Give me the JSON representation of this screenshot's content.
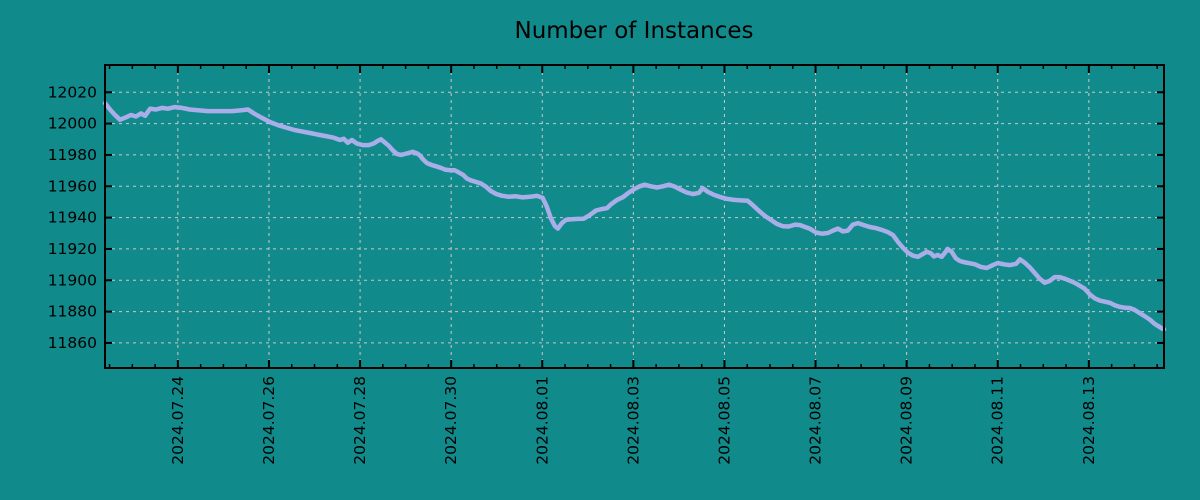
{
  "chart_data": {
    "type": "line",
    "title": "Number of Instances",
    "x_axis": {
      "kind": "time",
      "note": "x expressed in days since 2024.07.22 00:00, derived from tick labels",
      "domain": [
        0.4,
        23.65
      ],
      "major_ticks": [
        {
          "d": 2,
          "label": "2024.07.24"
        },
        {
          "d": 4,
          "label": "2024.07.26"
        },
        {
          "d": 6,
          "label": "2024.07.28"
        },
        {
          "d": 8,
          "label": "2024.07.30"
        },
        {
          "d": 10,
          "label": "2024.08.01"
        },
        {
          "d": 12,
          "label": "2024.08.03"
        },
        {
          "d": 14,
          "label": "2024.08.05"
        },
        {
          "d": 16,
          "label": "2024.08.07"
        },
        {
          "d": 18,
          "label": "2024.08.09"
        },
        {
          "d": 20,
          "label": "2024.08.11"
        },
        {
          "d": 22,
          "label": "2024.08.13"
        }
      ],
      "minor_tick_step_days": 0.5,
      "grid": "major-dashed"
    },
    "y_axis": {
      "domain": [
        11844,
        12037.4
      ],
      "ticks": [
        11860,
        11880,
        11900,
        11920,
        11940,
        11960,
        11980,
        12000,
        12020
      ],
      "grid": "major-dashed"
    },
    "colors": {
      "background": "#118a8b",
      "line": "#a9aee8",
      "grid": "#c9c9c9",
      "axis": "#000000",
      "text": "#000000"
    },
    "series": [
      {
        "name": "instances",
        "points": [
          [
            0.4,
            12013
          ],
          [
            0.51,
            12009
          ],
          [
            0.62,
            12005.5
          ],
          [
            0.73,
            12002.5
          ],
          [
            0.86,
            12004
          ],
          [
            0.97,
            12005.5
          ],
          [
            1.08,
            12004.5
          ],
          [
            1.19,
            12006.5
          ],
          [
            1.28,
            12005
          ],
          [
            1.39,
            12009.5
          ],
          [
            1.52,
            12009
          ],
          [
            1.65,
            12010
          ],
          [
            1.78,
            12009.5
          ],
          [
            1.93,
            12010.5
          ],
          [
            2.09,
            12010
          ],
          [
            2.26,
            12009
          ],
          [
            2.44,
            12008.5
          ],
          [
            2.66,
            12008
          ],
          [
            2.92,
            12008
          ],
          [
            3.19,
            12008
          ],
          [
            3.4,
            12008.5
          ],
          [
            3.54,
            12009
          ],
          [
            3.67,
            12006.5
          ],
          [
            3.82,
            12004
          ],
          [
            4.02,
            12001
          ],
          [
            4.2,
            11999
          ],
          [
            4.37,
            11997.5
          ],
          [
            4.55,
            11996
          ],
          [
            4.72,
            11995
          ],
          [
            4.9,
            11994
          ],
          [
            5.07,
            11993
          ],
          [
            5.25,
            11992
          ],
          [
            5.42,
            11991
          ],
          [
            5.56,
            11989.5
          ],
          [
            5.64,
            11990.3
          ],
          [
            5.73,
            11987.8
          ],
          [
            5.82,
            11989.5
          ],
          [
            5.93,
            11987.2
          ],
          [
            6.06,
            11986.3
          ],
          [
            6.19,
            11986.3
          ],
          [
            6.3,
            11987.3
          ],
          [
            6.39,
            11989
          ],
          [
            6.46,
            11990
          ],
          [
            6.54,
            11988
          ],
          [
            6.63,
            11985.8
          ],
          [
            6.72,
            11982.8
          ],
          [
            6.81,
            11980.6
          ],
          [
            6.9,
            11980
          ],
          [
            6.98,
            11980.6
          ],
          [
            7.07,
            11981.3
          ],
          [
            7.16,
            11982
          ],
          [
            7.25,
            11981
          ],
          [
            7.31,
            11979.8
          ],
          [
            7.38,
            11977.3
          ],
          [
            7.47,
            11974.8
          ],
          [
            7.58,
            11973.5
          ],
          [
            7.66,
            11972.8
          ],
          [
            7.77,
            11971.8
          ],
          [
            7.88,
            11970.5
          ],
          [
            7.99,
            11970.2
          ],
          [
            8.08,
            11970.2
          ],
          [
            8.17,
            11968.8
          ],
          [
            8.26,
            11967.3
          ],
          [
            8.34,
            11965
          ],
          [
            8.43,
            11963.8
          ],
          [
            8.54,
            11962.8
          ],
          [
            8.65,
            11961.8
          ],
          [
            8.76,
            11959.8
          ],
          [
            8.87,
            11957
          ],
          [
            8.98,
            11955.2
          ],
          [
            9.11,
            11954
          ],
          [
            9.27,
            11953.3
          ],
          [
            9.42,
            11953.6
          ],
          [
            9.57,
            11952.9
          ],
          [
            9.73,
            11953.3
          ],
          [
            9.88,
            11953.9
          ],
          [
            10.01,
            11952.6
          ],
          [
            10.1,
            11947
          ],
          [
            10.19,
            11939.5
          ],
          [
            10.28,
            11934.5
          ],
          [
            10.34,
            11933
          ],
          [
            10.43,
            11936.5
          ],
          [
            10.52,
            11938.5
          ],
          [
            10.65,
            11939
          ],
          [
            10.78,
            11939.2
          ],
          [
            10.91,
            11939.3
          ],
          [
            11.04,
            11941.5
          ],
          [
            11.18,
            11944.5
          ],
          [
            11.31,
            11945.5
          ],
          [
            11.42,
            11946
          ],
          [
            11.51,
            11948.5
          ],
          [
            11.64,
            11951.3
          ],
          [
            11.77,
            11953
          ],
          [
            11.88,
            11955.5
          ],
          [
            12.01,
            11958
          ],
          [
            12.14,
            11960
          ],
          [
            12.25,
            11961
          ],
          [
            12.38,
            11960
          ],
          [
            12.52,
            11959.2
          ],
          [
            12.65,
            11960
          ],
          [
            12.78,
            11961
          ],
          [
            12.91,
            11959.8
          ],
          [
            13.04,
            11957.8
          ],
          [
            13.17,
            11956
          ],
          [
            13.31,
            11955
          ],
          [
            13.44,
            11955.8
          ],
          [
            13.52,
            11958.8
          ],
          [
            13.63,
            11956.5
          ],
          [
            13.77,
            11954.5
          ],
          [
            13.9,
            11953.2
          ],
          [
            14.05,
            11952
          ],
          [
            14.21,
            11951.3
          ],
          [
            14.36,
            11951
          ],
          [
            14.51,
            11950.7
          ],
          [
            14.62,
            11948
          ],
          [
            14.75,
            11944.5
          ],
          [
            14.89,
            11941
          ],
          [
            15.02,
            11938.5
          ],
          [
            15.15,
            11936
          ],
          [
            15.28,
            11934.5
          ],
          [
            15.41,
            11934.3
          ],
          [
            15.55,
            11935.5
          ],
          [
            15.66,
            11935.2
          ],
          [
            15.77,
            11934
          ],
          [
            15.87,
            11933
          ],
          [
            16.01,
            11930.5
          ],
          [
            16.14,
            11929.7
          ],
          [
            16.27,
            11930.2
          ],
          [
            16.38,
            11931.7
          ],
          [
            16.49,
            11933
          ],
          [
            16.6,
            11931.2
          ],
          [
            16.71,
            11931.7
          ],
          [
            16.82,
            11935.5
          ],
          [
            16.93,
            11936.5
          ],
          [
            17.06,
            11935.2
          ],
          [
            17.19,
            11934
          ],
          [
            17.32,
            11933.3
          ],
          [
            17.45,
            11932.2
          ],
          [
            17.59,
            11930.7
          ],
          [
            17.7,
            11928.8
          ],
          [
            17.81,
            11924.5
          ],
          [
            17.92,
            11920.7
          ],
          [
            18.03,
            11917.5
          ],
          [
            18.14,
            11915.7
          ],
          [
            18.25,
            11915
          ],
          [
            18.36,
            11916.8
          ],
          [
            18.44,
            11918.2
          ],
          [
            18.53,
            11917.3
          ],
          [
            18.6,
            11915.2
          ],
          [
            18.68,
            11916.2
          ],
          [
            18.77,
            11915
          ],
          [
            18.84,
            11917.5
          ],
          [
            18.9,
            11920
          ],
          [
            18.99,
            11918.2
          ],
          [
            19.08,
            11914
          ],
          [
            19.17,
            11912.3
          ],
          [
            19.28,
            11911.4
          ],
          [
            19.39,
            11910.8
          ],
          [
            19.5,
            11910.2
          ],
          [
            19.63,
            11908.5
          ],
          [
            19.76,
            11907.8
          ],
          [
            19.89,
            11909.6
          ],
          [
            20.0,
            11911
          ],
          [
            20.13,
            11910.2
          ],
          [
            20.27,
            11909.7
          ],
          [
            20.4,
            11910.5
          ],
          [
            20.49,
            11913.3
          ],
          [
            20.6,
            11911
          ],
          [
            20.71,
            11908
          ],
          [
            20.81,
            11904.7
          ],
          [
            20.92,
            11901
          ],
          [
            21.03,
            11898.4
          ],
          [
            21.14,
            11899.6
          ],
          [
            21.25,
            11902
          ],
          [
            21.36,
            11902
          ],
          [
            21.47,
            11901
          ],
          [
            21.58,
            11899.7
          ],
          [
            21.69,
            11898.4
          ],
          [
            21.8,
            11896.5
          ],
          [
            21.91,
            11894.6
          ],
          [
            22.02,
            11891
          ],
          [
            22.13,
            11888.5
          ],
          [
            22.24,
            11887
          ],
          [
            22.35,
            11886.3
          ],
          [
            22.46,
            11885.6
          ],
          [
            22.57,
            11884
          ],
          [
            22.68,
            11883
          ],
          [
            22.79,
            11882.5
          ],
          [
            22.9,
            11882.3
          ],
          [
            23.01,
            11881
          ],
          [
            23.12,
            11879
          ],
          [
            23.23,
            11877
          ],
          [
            23.34,
            11874.8
          ],
          [
            23.45,
            11872
          ],
          [
            23.54,
            11870.5
          ],
          [
            23.6,
            11869.3
          ],
          [
            23.65,
            11868.7
          ]
        ]
      }
    ]
  }
}
